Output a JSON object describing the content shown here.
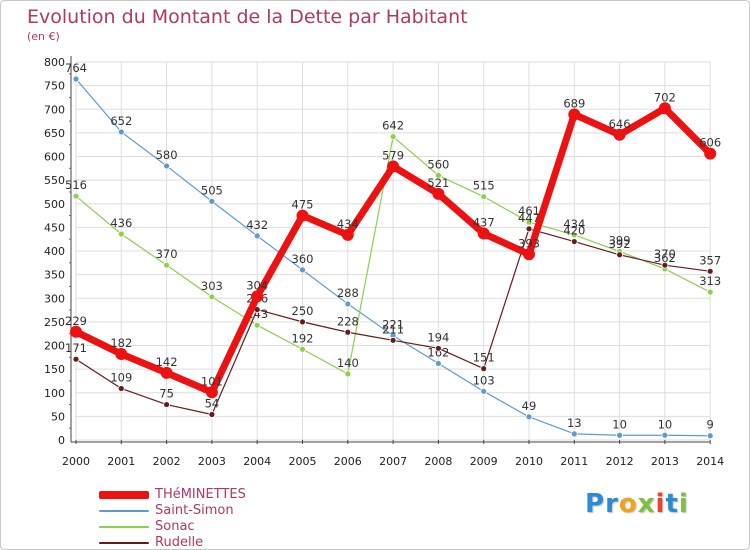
{
  "header": {
    "title": "Evolution du Montant de la Dette par Habitant",
    "subtitle": "(en €)"
  },
  "logo": {
    "text": "Proxiti",
    "letters": [
      {
        "ch": "P",
        "color": "#2a8bd8"
      },
      {
        "ch": "r",
        "color": "#2a8bd8"
      },
      {
        "ch": "o",
        "color": "#f3a21b"
      },
      {
        "ch": "x",
        "color": "#7cc142"
      },
      {
        "ch": "i",
        "color": "#e8452c"
      },
      {
        "ch": "t",
        "color": "#2a8bd8"
      },
      {
        "ch": "i",
        "color": "#7cc142"
      }
    ]
  },
  "colors": {
    "grid": "#dddddd",
    "axis": "#444444",
    "title": "#b03868"
  },
  "chart_data": {
    "type": "line",
    "title": "Evolution du Montant de la Dette par Habitant",
    "subtitle": "(en €)",
    "xlabel": "",
    "ylabel": "",
    "ylim": [
      0,
      800
    ],
    "yticks": [
      0,
      50,
      100,
      150,
      200,
      250,
      300,
      350,
      400,
      450,
      500,
      550,
      600,
      650,
      700,
      750,
      800
    ],
    "grid": true,
    "legend_position": "bottom-left",
    "categories": [
      "2000",
      "2001",
      "2002",
      "2003",
      "2004",
      "2005",
      "2006",
      "2007",
      "2008",
      "2009",
      "2010",
      "2011",
      "2012",
      "2013",
      "2014"
    ],
    "series": [
      {
        "name": "Saint-Simon",
        "color": "#5b9bd5",
        "values": [
          764,
          652,
          580,
          505,
          432,
          360,
          288,
          221,
          162,
          103,
          49,
          13,
          10,
          10,
          9
        ]
      },
      {
        "name": "Sonac",
        "color": "#8dd04a",
        "values": [
          516,
          436,
          370,
          303,
          243,
          192,
          140,
          642,
          560,
          515,
          461,
          434,
          399,
          362,
          313
        ]
      },
      {
        "name": "Rudelle",
        "color": "#6b1a1a",
        "values": [
          171,
          109,
          75,
          54,
          276,
          250,
          228,
          211,
          194,
          151,
          447,
          420,
          392,
          370,
          357
        ]
      },
      {
        "name": "THéMINETTES",
        "color": "#ee1111",
        "values": [
          229,
          182,
          142,
          101,
          304,
          475,
          434,
          579,
          521,
          437,
          393,
          689,
          646,
          702,
          606
        ]
      }
    ],
    "labels": {
      "Saint-Simon": [
        "764",
        "652",
        "580",
        "505",
        "432",
        "360",
        "288",
        "221",
        "162",
        "103",
        "49",
        "13",
        "10",
        "10",
        "9"
      ],
      "Sonac": [
        "516",
        "436",
        "370",
        "303",
        "243",
        "192",
        "140",
        "642",
        "560",
        "515",
        "461",
        "434",
        "399",
        "362",
        "313"
      ],
      "Rudelle": [
        "171",
        "109",
        "75",
        "54",
        "276",
        "250",
        "228",
        "211",
        "194",
        "151",
        "447",
        "420",
        "392",
        "370",
        "357"
      ],
      "THéMINETTES": [
        "229",
        "182",
        "142",
        "101",
        "304",
        "475",
        "434",
        "579",
        "521",
        "437",
        "393",
        "689",
        "646",
        "702",
        "606"
      ]
    },
    "legend": [
      "THéMINETTES",
      "Saint-Simon",
      "Sonac",
      "Rudelle"
    ]
  }
}
